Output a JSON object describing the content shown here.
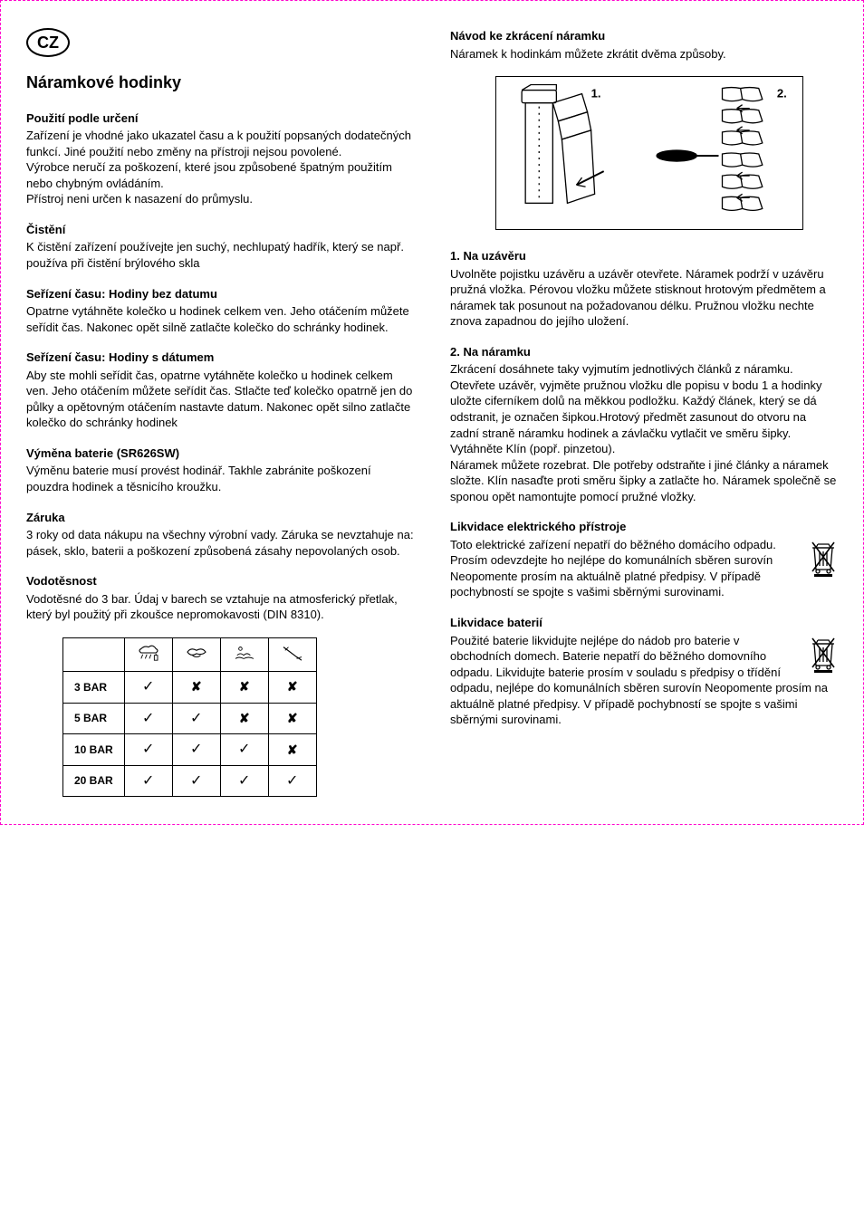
{
  "lang_badge": "CZ",
  "title": "Náramkové hodinky",
  "left_sections": [
    {
      "title": "Použití podle určení",
      "body": "Zařízení je vhodné jako ukazatel času a k použití popsaných dodatečných funkcí. Jiné použití nebo změny na přístroji nejsou povolené.\nVýrobce neručí za poškození, které jsou způsobené špatným použitím nebo chybným ovládáním.\nPřístroj neni určen k nasazení do průmyslu."
    },
    {
      "title": "Čistění",
      "body": "K čistění zařízení používejte jen suchý, nechlupatý hadřík, který se např. používa při čistění brýlového skla"
    },
    {
      "title": "Seřízení času: Hodiny bez datumu",
      "body": "Opatrne vytáhněte kolečko u hodinek celkem ven. Jeho otáčením můžete seřídit čas. Nakonec opět silně zatlačte kolečko do schránky hodinek."
    },
    {
      "title": "Seřízení času: Hodiny s dátumem",
      "body": "Aby ste mohli seřídit čas, opatrne vytáhněte kolečko u hodinek celkem ven. Jeho otáčením můžete seřídit čas. Stlačte teď kolečko opatrně jen do půlky a opětovným otáčením nastavte datum. Nakonec opět silno zatlačte kolečko do schránky hodinek"
    },
    {
      "title": "Výměna baterie (SR626SW)",
      "body": "Výměnu baterie musí provést hodinář. Takhle zabránite poškození pouzdra hodinek a těsnicího kroužku."
    },
    {
      "title": "Záruka",
      "body": "3 roky od data nákupu na všechny výrobní vady. Záruka se nevztahuje na: pásek, sklo, baterii a poškození způsobená zásahy nepovolaných osob."
    },
    {
      "title": "Vodotěsnost",
      "body": "Vodotěsné do 3 bar. Údaj v barech se vztahuje na atmosferický přetlak, který byl použitý při zkoušce nepromokavosti (DIN 8310)."
    }
  ],
  "right_intro_title": "Návod ke zkrácení náramku",
  "right_intro_body": "Náramek k hodinkám můžete zkrátit dvěma způsoby.",
  "diagram_labels": {
    "one": "1.",
    "two": "2."
  },
  "right_sections": [
    {
      "title": "1. Na uzávěru",
      "body": "Uvolněte pojistku uzávěru a uzávěr otevřete. Náramek podrží v uzávěru pružná vložka. Pérovou vložku můžete stisknout hrotovým předmětem a náramek tak posunout na požadovanou délku. Pružnou vložku nechte znova zapadnou do jejího uložení."
    },
    {
      "title": "2. Na náramku",
      "body": "Zkrácení dosáhnete taky vyjmutím jednotlivých článků z náramku.\nOtevřete uzávěr, vyjměte pružnou vložku dle popisu v bodu 1 a hodinky uložte ciferníkem dolů na měkkou podložku. Každý článek, který se dá odstranit, je označen šipkou.Hrotový předmět  zasunout do otvoru na zadní straně náramku hodinek a závlačku vytlačit ve směru šipky. Vytáhněte Klín (popř. pinzetou).\nNáramek můžete rozebrat. Dle potřeby odstraňte i jiné články a náramek složte. Klín nasaďte proti směru šipky a zatlačte ho. Náramek společně se sponou opět namontujte pomocí pružné vložky."
    },
    {
      "title": "Likvidace elektrického přístroje",
      "body": "Toto elektrické zařízení nepatří do běžného domácího odpadu. Prosím odevzdejte ho nejlépe do komunálních sběren surovín Neopomente prosím na aktuálně platné předpisy. V případě pochybností se spojte s vašimi sběrnými surovinami.",
      "weee": true
    },
    {
      "title": "Likvidace baterií",
      "body": "Použité baterie likvidujte nejlépe do nádob pro baterie v obchodních domech. Baterie nepatří do běžného domovního odpadu. Likvidujte baterie prosím v souladu s předpisy o třídění odpadu, nejlépe do komunálních sběren surovín Neopomente prosím na aktuálně platné předpisy. V případě pochybností se spojte s vašimi sběrnými surovinami.",
      "weee": true
    }
  ],
  "water_table": {
    "rows": [
      "3 BAR",
      "5 BAR",
      "10 BAR",
      "20 BAR"
    ],
    "matrix": [
      [
        true,
        false,
        false,
        false
      ],
      [
        true,
        true,
        false,
        false
      ],
      [
        true,
        true,
        true,
        false
      ],
      [
        true,
        true,
        true,
        true
      ]
    ]
  }
}
